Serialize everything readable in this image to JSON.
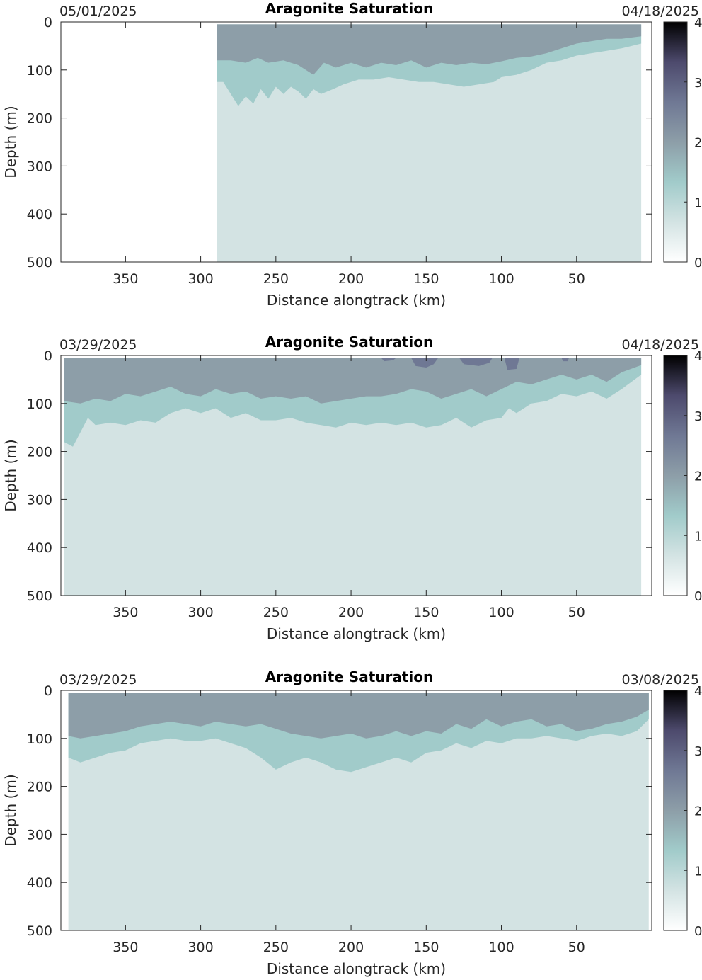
{
  "colors": {
    "background": "#ffffff",
    "axis": "#262626",
    "colormap": [
      "#ffffff",
      "#d3e3e3",
      "#a1cbca",
      "#8d9ea8",
      "#6f7894",
      "#4d4a6d",
      "#000000"
    ]
  },
  "chart_data": [
    {
      "type": "heatmap",
      "title": "Aragonite Saturation",
      "date_left": "05/01/2025",
      "date_right": "04/18/2025",
      "xlabel": "Distance alongtrack (km)",
      "ylabel": "Depth (m)",
      "x_direction": "reversed",
      "xlim": [
        393,
        0
      ],
      "ylim": [
        0,
        500
      ],
      "y_direction": "down",
      "xticks": [
        350,
        300,
        250,
        200,
        150,
        100,
        50
      ],
      "yticks": [
        0,
        100,
        200,
        300,
        400,
        500
      ],
      "clim": [
        0,
        4
      ],
      "colorbar_ticks": [
        0,
        1,
        2,
        3,
        4
      ],
      "data_extent_km": [
        289,
        7
      ],
      "surface_depth_m": 5,
      "levels": [
        {
          "name": "below 1",
          "color": "#d3e3e3"
        },
        {
          "name": "1 to 1.5",
          "color": "#a1cbca"
        },
        {
          "name": "1.5 to 2",
          "color": "#8d9ea8"
        },
        {
          "name": "above 2",
          "color": "#6f7894"
        }
      ],
      "contours": {
        "boundary_1.5": [
          [
            289,
            80
          ],
          [
            280,
            80
          ],
          [
            270,
            85
          ],
          [
            262,
            75
          ],
          [
            255,
            85
          ],
          [
            245,
            80
          ],
          [
            235,
            90
          ],
          [
            225,
            110
          ],
          [
            218,
            85
          ],
          [
            210,
            95
          ],
          [
            200,
            85
          ],
          [
            190,
            95
          ],
          [
            180,
            85
          ],
          [
            170,
            90
          ],
          [
            160,
            80
          ],
          [
            150,
            95
          ],
          [
            140,
            85
          ],
          [
            130,
            90
          ],
          [
            120,
            85
          ],
          [
            110,
            88
          ],
          [
            100,
            82
          ],
          [
            90,
            75
          ],
          [
            80,
            72
          ],
          [
            70,
            65
          ],
          [
            60,
            55
          ],
          [
            50,
            45
          ],
          [
            40,
            40
          ],
          [
            30,
            35
          ],
          [
            20,
            35
          ],
          [
            7,
            30
          ]
        ],
        "boundary_1.0": [
          [
            289,
            125
          ],
          [
            285,
            125
          ],
          [
            280,
            150
          ],
          [
            275,
            175
          ],
          [
            270,
            155
          ],
          [
            265,
            170
          ],
          [
            260,
            140
          ],
          [
            255,
            160
          ],
          [
            250,
            135
          ],
          [
            245,
            150
          ],
          [
            240,
            135
          ],
          [
            235,
            145
          ],
          [
            230,
            160
          ],
          [
            225,
            140
          ],
          [
            220,
            150
          ],
          [
            212,
            140
          ],
          [
            205,
            130
          ],
          [
            195,
            120
          ],
          [
            185,
            120
          ],
          [
            175,
            115
          ],
          [
            165,
            120
          ],
          [
            155,
            125
          ],
          [
            145,
            125
          ],
          [
            135,
            130
          ],
          [
            125,
            135
          ],
          [
            115,
            130
          ],
          [
            105,
            125
          ],
          [
            100,
            115
          ],
          [
            90,
            110
          ],
          [
            80,
            100
          ],
          [
            70,
            85
          ],
          [
            60,
            80
          ],
          [
            50,
            70
          ],
          [
            40,
            65
          ],
          [
            30,
            60
          ],
          [
            20,
            55
          ],
          [
            7,
            45
          ]
        ],
        "patches_above_2": []
      }
    },
    {
      "type": "heatmap",
      "title": "Aragonite Saturation",
      "date_left": "03/29/2025",
      "date_right": "04/18/2025",
      "xlabel": "Distance alongtrack (km)",
      "ylabel": "Depth (m)",
      "x_direction": "reversed",
      "xlim": [
        393,
        0
      ],
      "ylim": [
        0,
        500
      ],
      "y_direction": "down",
      "xticks": [
        350,
        300,
        250,
        200,
        150,
        100,
        50
      ],
      "yticks": [
        0,
        100,
        200,
        300,
        400,
        500
      ],
      "clim": [
        0,
        4
      ],
      "colorbar_ticks": [
        0,
        1,
        2,
        3,
        4
      ],
      "data_extent_km": [
        391,
        7
      ],
      "surface_depth_m": 5,
      "levels": [
        {
          "name": "below 1",
          "color": "#d3e3e3"
        },
        {
          "name": "1 to 1.5",
          "color": "#a1cbca"
        },
        {
          "name": "1.5 to 2",
          "color": "#8d9ea8"
        },
        {
          "name": "above 2",
          "color": "#6f7894"
        }
      ],
      "contours": {
        "boundary_1.5": [
          [
            391,
            95
          ],
          [
            380,
            100
          ],
          [
            370,
            90
          ],
          [
            360,
            95
          ],
          [
            350,
            80
          ],
          [
            340,
            85
          ],
          [
            330,
            75
          ],
          [
            320,
            65
          ],
          [
            310,
            80
          ],
          [
            300,
            85
          ],
          [
            290,
            70
          ],
          [
            280,
            80
          ],
          [
            270,
            75
          ],
          [
            260,
            90
          ],
          [
            250,
            85
          ],
          [
            240,
            90
          ],
          [
            230,
            85
          ],
          [
            220,
            100
          ],
          [
            210,
            95
          ],
          [
            200,
            90
          ],
          [
            190,
            85
          ],
          [
            180,
            85
          ],
          [
            170,
            80
          ],
          [
            160,
            70
          ],
          [
            150,
            75
          ],
          [
            140,
            90
          ],
          [
            130,
            80
          ],
          [
            120,
            70
          ],
          [
            110,
            85
          ],
          [
            100,
            70
          ],
          [
            90,
            55
          ],
          [
            80,
            60
          ],
          [
            70,
            50
          ],
          [
            60,
            40
          ],
          [
            50,
            50
          ],
          [
            40,
            40
          ],
          [
            30,
            55
          ],
          [
            20,
            35
          ],
          [
            7,
            20
          ]
        ],
        "boundary_1.0": [
          [
            391,
            180
          ],
          [
            385,
            190
          ],
          [
            380,
            160
          ],
          [
            375,
            130
          ],
          [
            370,
            145
          ],
          [
            360,
            140
          ],
          [
            350,
            145
          ],
          [
            340,
            135
          ],
          [
            330,
            140
          ],
          [
            320,
            120
          ],
          [
            310,
            110
          ],
          [
            300,
            120
          ],
          [
            290,
            110
          ],
          [
            280,
            130
          ],
          [
            270,
            120
          ],
          [
            260,
            135
          ],
          [
            250,
            135
          ],
          [
            240,
            130
          ],
          [
            230,
            140
          ],
          [
            220,
            145
          ],
          [
            210,
            150
          ],
          [
            200,
            140
          ],
          [
            190,
            145
          ],
          [
            180,
            140
          ],
          [
            170,
            145
          ],
          [
            160,
            140
          ],
          [
            150,
            150
          ],
          [
            140,
            145
          ],
          [
            130,
            130
          ],
          [
            120,
            150
          ],
          [
            110,
            135
          ],
          [
            100,
            130
          ],
          [
            95,
            110
          ],
          [
            90,
            120
          ],
          [
            80,
            100
          ],
          [
            70,
            95
          ],
          [
            60,
            80
          ],
          [
            50,
            85
          ],
          [
            40,
            75
          ],
          [
            30,
            90
          ],
          [
            20,
            70
          ],
          [
            7,
            40
          ]
        ],
        "patches_above_2": [
          [
            [
              180,
              5
            ],
            [
              178,
              12
            ],
            [
              172,
              10
            ],
            [
              170,
              5
            ]
          ],
          [
            [
              160,
              5
            ],
            [
              157,
              22
            ],
            [
              150,
              25
            ],
            [
              145,
              18
            ],
            [
              142,
              5
            ]
          ],
          [
            [
              128,
              5
            ],
            [
              125,
              18
            ],
            [
              115,
              22
            ],
            [
              108,
              15
            ],
            [
              106,
              5
            ]
          ],
          [
            [
              98,
              5
            ],
            [
              96,
              30
            ],
            [
              90,
              28
            ],
            [
              88,
              5
            ]
          ],
          [
            [
              60,
              5
            ],
            [
              59,
              12
            ],
            [
              56,
              12
            ],
            [
              55,
              5
            ]
          ]
        ]
      }
    },
    {
      "type": "heatmap",
      "title": "Aragonite Saturation",
      "date_left": "03/29/2025",
      "date_right": "03/08/2025",
      "xlabel": "Distance alongtrack (km)",
      "ylabel": "Depth (m)",
      "x_direction": "reversed",
      "xlim": [
        393,
        0
      ],
      "ylim": [
        0,
        500
      ],
      "y_direction": "down",
      "xticks": [
        350,
        300,
        250,
        200,
        150,
        100,
        50
      ],
      "yticks": [
        0,
        100,
        200,
        300,
        400,
        500
      ],
      "clim": [
        0,
        4
      ],
      "colorbar_ticks": [
        0,
        1,
        2,
        3,
        4
      ],
      "data_extent_km": [
        388,
        2
      ],
      "surface_depth_m": 5,
      "levels": [
        {
          "name": "below 1",
          "color": "#d3e3e3"
        },
        {
          "name": "1 to 1.5",
          "color": "#a1cbca"
        },
        {
          "name": "1.5 to 2",
          "color": "#8d9ea8"
        },
        {
          "name": "above 2",
          "color": "#6f7894"
        }
      ],
      "contours": {
        "boundary_1.5": [
          [
            388,
            95
          ],
          [
            380,
            100
          ],
          [
            370,
            95
          ],
          [
            360,
            90
          ],
          [
            350,
            85
          ],
          [
            340,
            75
          ],
          [
            330,
            70
          ],
          [
            320,
            65
          ],
          [
            310,
            70
          ],
          [
            300,
            75
          ],
          [
            290,
            65
          ],
          [
            280,
            70
          ],
          [
            270,
            75
          ],
          [
            260,
            70
          ],
          [
            250,
            80
          ],
          [
            240,
            90
          ],
          [
            230,
            95
          ],
          [
            220,
            100
          ],
          [
            210,
            95
          ],
          [
            200,
            90
          ],
          [
            190,
            100
          ],
          [
            180,
            95
          ],
          [
            170,
            85
          ],
          [
            160,
            95
          ],
          [
            150,
            85
          ],
          [
            140,
            90
          ],
          [
            130,
            70
          ],
          [
            120,
            80
          ],
          [
            110,
            60
          ],
          [
            100,
            75
          ],
          [
            90,
            65
          ],
          [
            80,
            60
          ],
          [
            70,
            75
          ],
          [
            60,
            70
          ],
          [
            50,
            85
          ],
          [
            40,
            80
          ],
          [
            30,
            70
          ],
          [
            20,
            65
          ],
          [
            10,
            55
          ],
          [
            2,
            40
          ]
        ],
        "boundary_1.0": [
          [
            388,
            140
          ],
          [
            380,
            150
          ],
          [
            370,
            140
          ],
          [
            360,
            130
          ],
          [
            350,
            125
          ],
          [
            340,
            110
          ],
          [
            330,
            105
          ],
          [
            320,
            100
          ],
          [
            310,
            105
          ],
          [
            300,
            105
          ],
          [
            290,
            100
          ],
          [
            280,
            110
          ],
          [
            270,
            120
          ],
          [
            260,
            140
          ],
          [
            250,
            165
          ],
          [
            240,
            150
          ],
          [
            230,
            140
          ],
          [
            220,
            150
          ],
          [
            210,
            165
          ],
          [
            200,
            170
          ],
          [
            190,
            160
          ],
          [
            180,
            150
          ],
          [
            170,
            140
          ],
          [
            160,
            150
          ],
          [
            150,
            130
          ],
          [
            140,
            125
          ],
          [
            130,
            110
          ],
          [
            120,
            120
          ],
          [
            110,
            105
          ],
          [
            100,
            110
          ],
          [
            90,
            100
          ],
          [
            80,
            100
          ],
          [
            70,
            95
          ],
          [
            60,
            100
          ],
          [
            50,
            105
          ],
          [
            40,
            95
          ],
          [
            30,
            90
          ],
          [
            20,
            95
          ],
          [
            10,
            85
          ],
          [
            2,
            60
          ]
        ],
        "patches_above_2": []
      }
    }
  ]
}
